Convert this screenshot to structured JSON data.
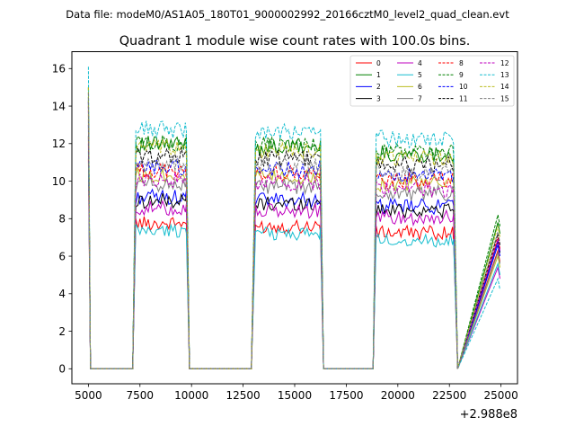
{
  "suptitle": "Data file: modeM0/AS1A05_180T01_9000002992_20166cztM0_level2_quad_clean.evt",
  "chart_data": {
    "type": "line",
    "title": "Quadrant 1 module wise count rates with 100.0s bins.",
    "xlabel": "",
    "ylabel": "",
    "offset_label": "+2.988e8",
    "xlim": [
      4200,
      25800
    ],
    "ylim": [
      -0.8,
      16.9
    ],
    "xticks": [
      5000,
      7500,
      10000,
      12500,
      15000,
      17500,
      20000,
      22500,
      25000
    ],
    "yticks": [
      0,
      2,
      4,
      6,
      8,
      10,
      12,
      14,
      16
    ],
    "legend_position": "top-right",
    "segments": [
      {
        "start": 7300,
        "end": 9750
      },
      {
        "start": 13100,
        "end": 16250
      },
      {
        "start": 18950,
        "end": 22700
      }
    ],
    "time_points": [
      5000,
      5100,
      5300,
      7150,
      7300,
      9750,
      9900,
      10100,
      12900,
      13100,
      16250,
      16400,
      18800,
      18950,
      22700,
      22900,
      24850,
      24950
    ],
    "series": [
      {
        "name": "0",
        "color": "#ff0000",
        "dash": "solid",
        "plateau": 7.6,
        "start_value": 11.2,
        "end_value": 6.3
      },
      {
        "name": "1",
        "color": "#008000",
        "dash": "solid",
        "plateau": 11.8,
        "start_value": 14.5,
        "end_value": 7.8
      },
      {
        "name": "2",
        "color": "#0000ff",
        "dash": "solid",
        "plateau": 9.0,
        "start_value": 13.0,
        "end_value": 6.6
      },
      {
        "name": "3",
        "color": "#000000",
        "dash": "solid",
        "plateau": 8.8,
        "start_value": 12.4,
        "end_value": 6.8
      },
      {
        "name": "4",
        "color": "#bf00bf",
        "dash": "solid",
        "plateau": 8.4,
        "start_value": 12.0,
        "end_value": 5.4
      },
      {
        "name": "5",
        "color": "#17becf",
        "dash": "solid",
        "plateau": 7.2,
        "start_value": 11.6,
        "end_value": 5.6
      },
      {
        "name": "6",
        "color": "#bcbd22",
        "dash": "solid",
        "plateau": 10.2,
        "start_value": 13.6,
        "end_value": 6.0
      },
      {
        "name": "7",
        "color": "#7f7f7f",
        "dash": "solid",
        "plateau": 9.7,
        "start_value": 13.3,
        "end_value": 6.2
      },
      {
        "name": "8",
        "color": "#ff0000",
        "dash": "dashed",
        "plateau": 10.4,
        "start_value": 14.0,
        "end_value": 7.0
      },
      {
        "name": "9",
        "color": "#008000",
        "dash": "dashed",
        "plateau": 11.9,
        "start_value": 15.0,
        "end_value": 8.2
      },
      {
        "name": "10",
        "color": "#0000ff",
        "dash": "dashed",
        "plateau": 10.6,
        "start_value": 14.2,
        "end_value": 6.8
      },
      {
        "name": "11",
        "color": "#000000",
        "dash": "dashed",
        "plateau": 11.2,
        "start_value": 14.3,
        "end_value": 7.2
      },
      {
        "name": "12",
        "color": "#bf00bf",
        "dash": "dashed",
        "plateau": 9.9,
        "start_value": 13.8,
        "end_value": 6.9
      },
      {
        "name": "13",
        "color": "#17becf",
        "dash": "dashed",
        "plateau": 12.6,
        "start_value": 16.1,
        "end_value": 4.8
      },
      {
        "name": "14",
        "color": "#bcbd22",
        "dash": "dashed",
        "plateau": 11.6,
        "start_value": 15.0,
        "end_value": 7.6
      },
      {
        "name": "15",
        "color": "#7f7f7f",
        "dash": "dashed",
        "plateau": 10.8,
        "start_value": 14.7,
        "end_value": 7.3
      }
    ]
  }
}
